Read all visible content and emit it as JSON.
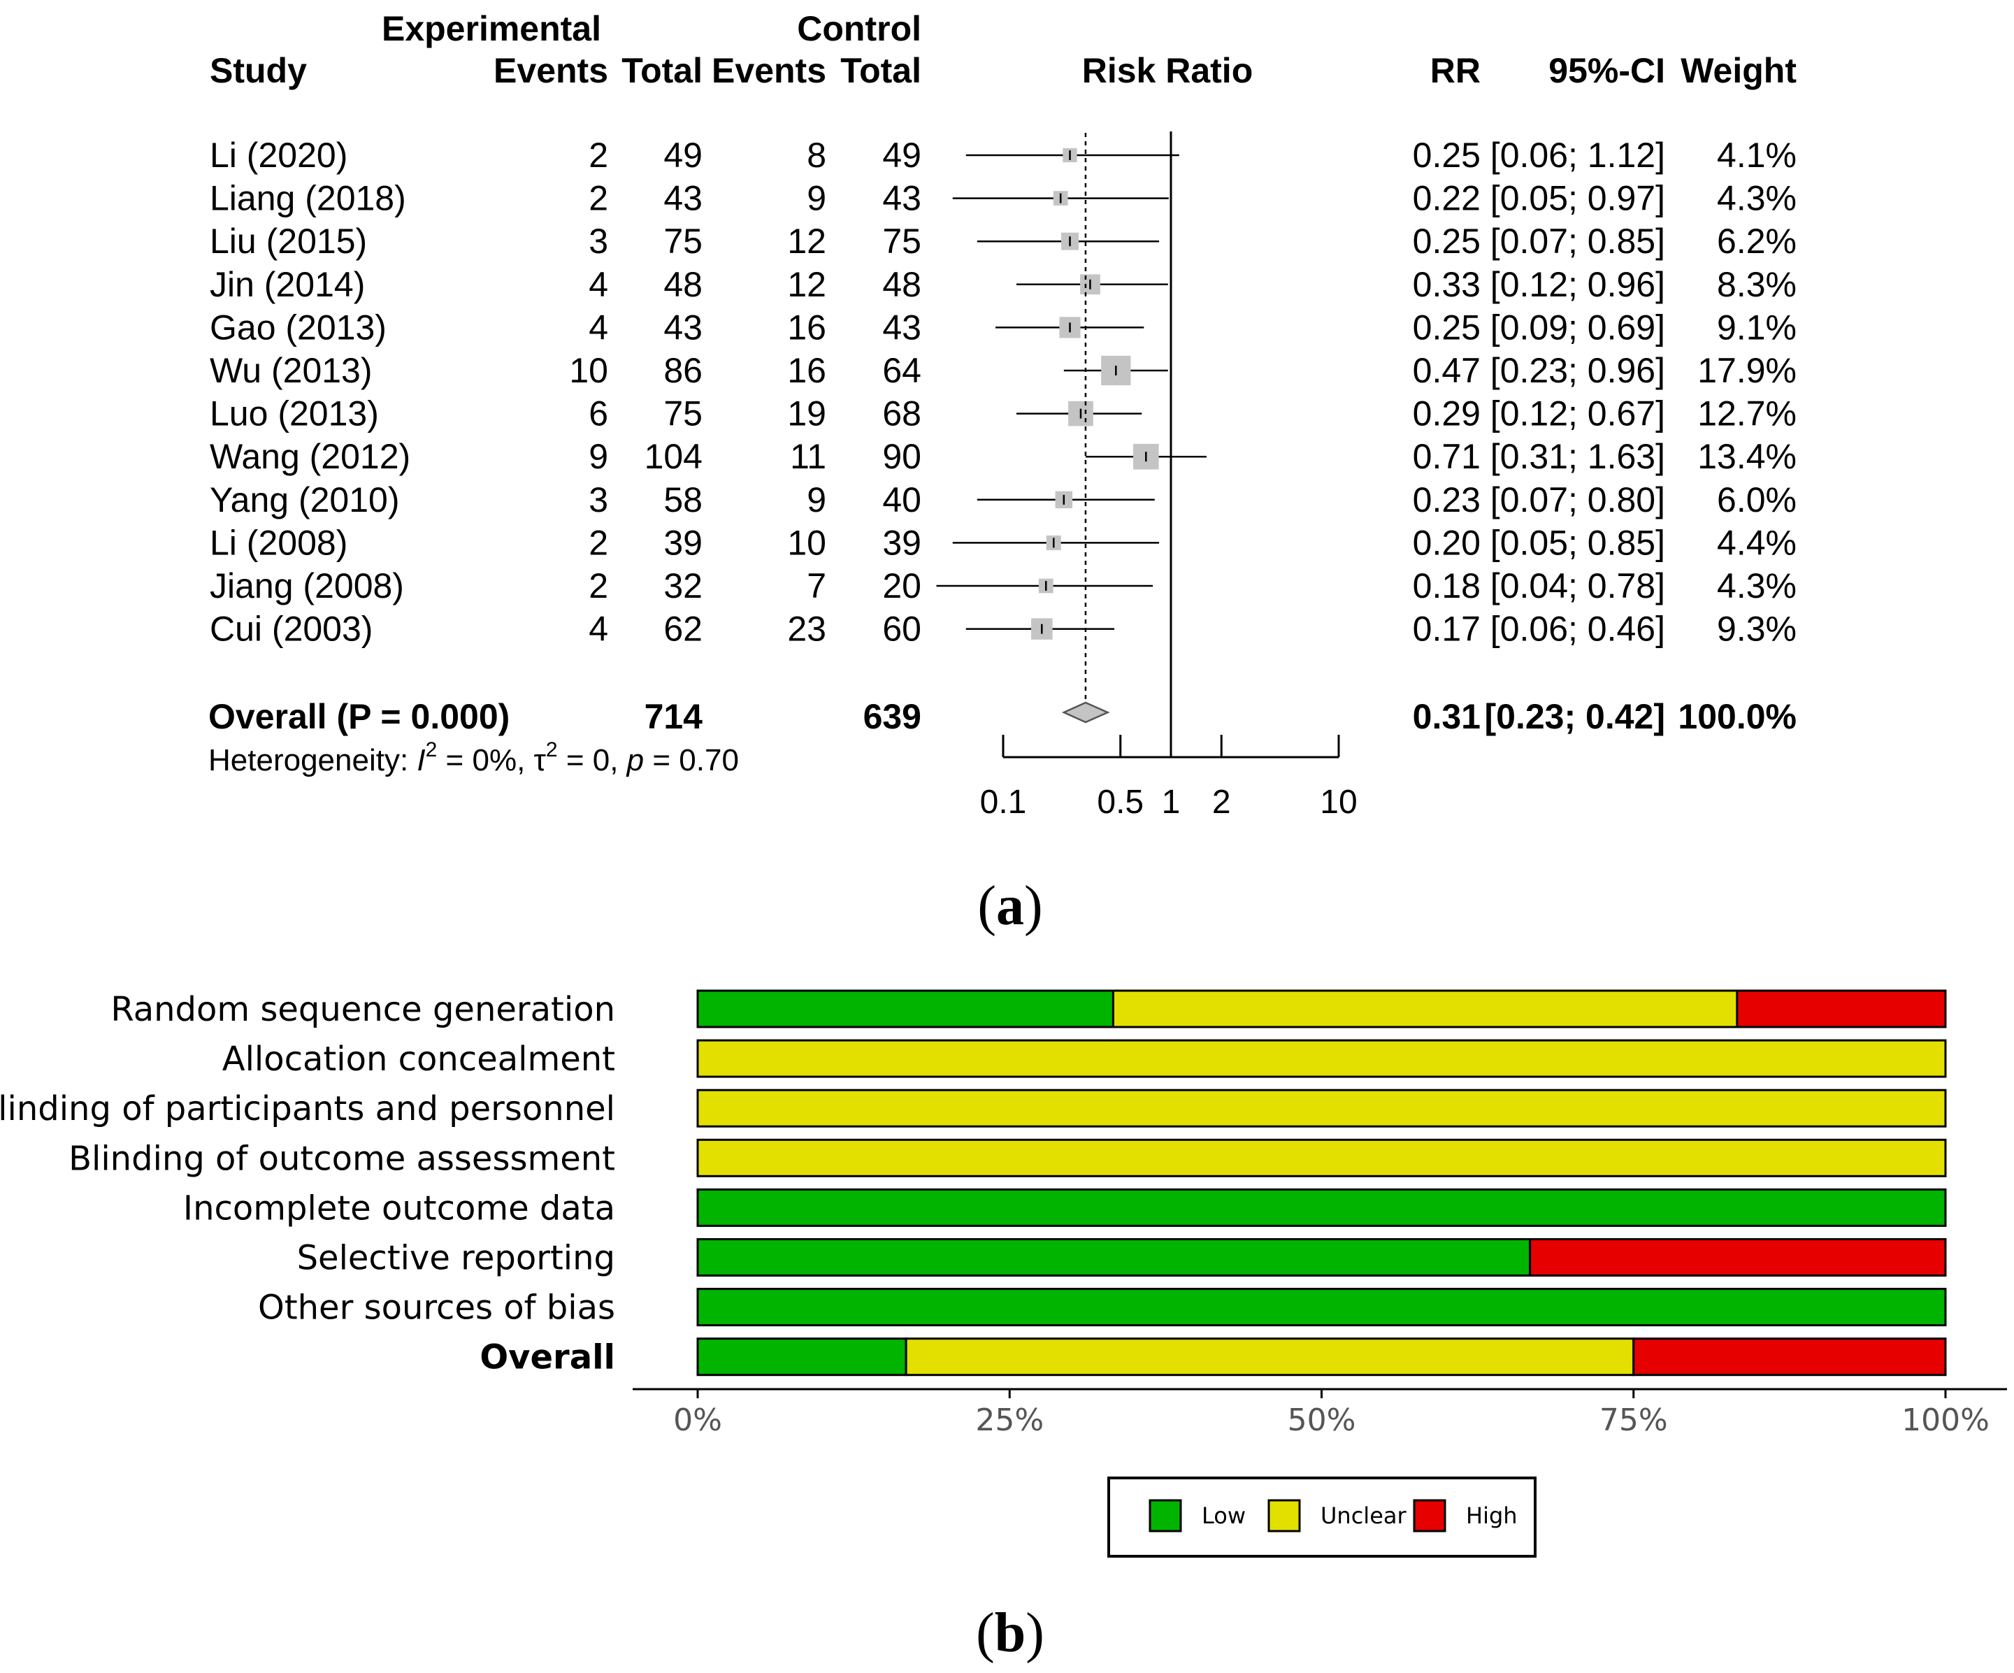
{
  "panel_a": {
    "caption": "a",
    "headers": {
      "study": "Study",
      "experimental": "Experimental",
      "control": "Control",
      "events": "Events",
      "total": "Total",
      "risk_ratio": "Risk Ratio",
      "rr": "RR",
      "ci": "95%-CI",
      "weight": "Weight"
    },
    "overall_label": "Overall (P = 0.000)",
    "heterogeneity": {
      "prefix": "Heterogeneity: ",
      "i2_symbol": "I",
      "sup": "2",
      "i2_value": " = 0%, ",
      "tau_symbol": "τ",
      "tau_value": " = 0, ",
      "p_symbol": "p",
      "p_value": " = 0.70"
    }
  },
  "panel_b": {
    "caption": "b"
  },
  "chart_data": [
    {
      "type": "forest",
      "title": "Risk Ratio",
      "scale": "log",
      "xlim": [
        0.1,
        10
      ],
      "null_value": 1,
      "x_ticks": [
        0.1,
        0.5,
        1,
        2,
        10
      ],
      "x_tick_labels": [
        "0.1",
        "0.5",
        "1",
        "2",
        "10"
      ],
      "studies": [
        {
          "study": "Li (2020)",
          "exp_events": "2",
          "exp_total": "49",
          "ctrl_events": "8",
          "ctrl_total": "49",
          "rr": 0.25,
          "lo": 0.06,
          "hi": 1.12,
          "weight": 4.1,
          "rr_text": "0.25",
          "ci_text": "[0.06; 1.12]",
          "weight_text": "4.1%"
        },
        {
          "study": "Liang (2018)",
          "exp_events": "2",
          "exp_total": "43",
          "ctrl_events": "9",
          "ctrl_total": "43",
          "rr": 0.22,
          "lo": 0.05,
          "hi": 0.97,
          "weight": 4.3,
          "rr_text": "0.22",
          "ci_text": "[0.05; 0.97]",
          "weight_text": "4.3%"
        },
        {
          "study": "Liu (2015)",
          "exp_events": "3",
          "exp_total": "75",
          "ctrl_events": "12",
          "ctrl_total": "75",
          "rr": 0.25,
          "lo": 0.07,
          "hi": 0.85,
          "weight": 6.2,
          "rr_text": "0.25",
          "ci_text": "[0.07; 0.85]",
          "weight_text": "6.2%"
        },
        {
          "study": "Jin (2014)",
          "exp_events": "4",
          "exp_total": "48",
          "ctrl_events": "12",
          "ctrl_total": "48",
          "rr": 0.33,
          "lo": 0.12,
          "hi": 0.96,
          "weight": 8.3,
          "rr_text": "0.33",
          "ci_text": "[0.12; 0.96]",
          "weight_text": "8.3%"
        },
        {
          "study": "Gao (2013)",
          "exp_events": "4",
          "exp_total": "43",
          "ctrl_events": "16",
          "ctrl_total": "43",
          "rr": 0.25,
          "lo": 0.09,
          "hi": 0.69,
          "weight": 9.1,
          "rr_text": "0.25",
          "ci_text": "[0.09; 0.69]",
          "weight_text": "9.1%"
        },
        {
          "study": "Wu (2013)",
          "exp_events": "10",
          "exp_total": "86",
          "ctrl_events": "16",
          "ctrl_total": "64",
          "rr": 0.47,
          "lo": 0.23,
          "hi": 0.96,
          "weight": 17.9,
          "rr_text": "0.47",
          "ci_text": "[0.23; 0.96]",
          "weight_text": "17.9%"
        },
        {
          "study": "Luo (2013)",
          "exp_events": "6",
          "exp_total": "75",
          "ctrl_events": "19",
          "ctrl_total": "68",
          "rr": 0.29,
          "lo": 0.12,
          "hi": 0.67,
          "weight": 12.7,
          "rr_text": "0.29",
          "ci_text": "[0.12; 0.67]",
          "weight_text": "12.7%"
        },
        {
          "study": "Wang (2012)",
          "exp_events": "9",
          "exp_total": "104",
          "ctrl_events": "11",
          "ctrl_total": "90",
          "rr": 0.71,
          "lo": 0.31,
          "hi": 1.63,
          "weight": 13.4,
          "rr_text": "0.71",
          "ci_text": "[0.31; 1.63]",
          "weight_text": "13.4%"
        },
        {
          "study": "Yang (2010)",
          "exp_events": "3",
          "exp_total": "58",
          "ctrl_events": "9",
          "ctrl_total": "40",
          "rr": 0.23,
          "lo": 0.07,
          "hi": 0.8,
          "weight": 6.0,
          "rr_text": "0.23",
          "ci_text": "[0.07; 0.80]",
          "weight_text": "6.0%"
        },
        {
          "study": "Li (2008)",
          "exp_events": "2",
          "exp_total": "39",
          "ctrl_events": "10",
          "ctrl_total": "39",
          "rr": 0.2,
          "lo": 0.05,
          "hi": 0.85,
          "weight": 4.4,
          "rr_text": "0.20",
          "ci_text": "[0.05; 0.85]",
          "weight_text": "4.4%"
        },
        {
          "study": "Jiang (2008)",
          "exp_events": "2",
          "exp_total": "32",
          "ctrl_events": "7",
          "ctrl_total": "20",
          "rr": 0.18,
          "lo": 0.04,
          "hi": 0.78,
          "weight": 4.3,
          "rr_text": "0.18",
          "ci_text": "[0.04; 0.78]",
          "weight_text": "4.3%"
        },
        {
          "study": "Cui (2003)",
          "exp_events": "4",
          "exp_total": "62",
          "ctrl_events": "23",
          "ctrl_total": "60",
          "rr": 0.17,
          "lo": 0.06,
          "hi": 0.46,
          "weight": 9.3,
          "rr_text": "0.17",
          "ci_text": "[0.06; 0.46]",
          "weight_text": "9.3%"
        }
      ],
      "overall": {
        "exp_total": "714",
        "ctrl_total": "639",
        "rr": 0.31,
        "lo": 0.23,
        "hi": 0.42,
        "rr_text": "0.31",
        "ci_text": "[0.23; 0.42]",
        "weight_text": "100.0%"
      }
    },
    {
      "type": "bar",
      "stacked": true,
      "orientation": "horizontal",
      "categories": [
        "Random sequence generation",
        "Allocation concealment",
        "Blinding of participants and personnel",
        "Blinding of outcome assessment",
        "Incomplete outcome data",
        "Selective reporting",
        "Other sources of bias",
        "Overall"
      ],
      "bold_category": "Overall",
      "series": [
        {
          "name": "Low",
          "color": "#00b400",
          "values": [
            33.3,
            0,
            0,
            0,
            100,
            66.7,
            100,
            16.7
          ]
        },
        {
          "name": "Unclear",
          "color": "#e3e000",
          "values": [
            50.0,
            100,
            100,
            100,
            0,
            0,
            0,
            58.3
          ]
        },
        {
          "name": "High",
          "color": "#e60000",
          "values": [
            16.7,
            0,
            0,
            0,
            0,
            33.3,
            0,
            25.0
          ]
        }
      ],
      "x_ticks": [
        0,
        25,
        50,
        75,
        100
      ],
      "x_tick_labels": [
        "0%",
        "25%",
        "50%",
        "75%",
        "100%"
      ],
      "xlim": [
        0,
        100
      ],
      "legend_position": "bottom"
    }
  ]
}
